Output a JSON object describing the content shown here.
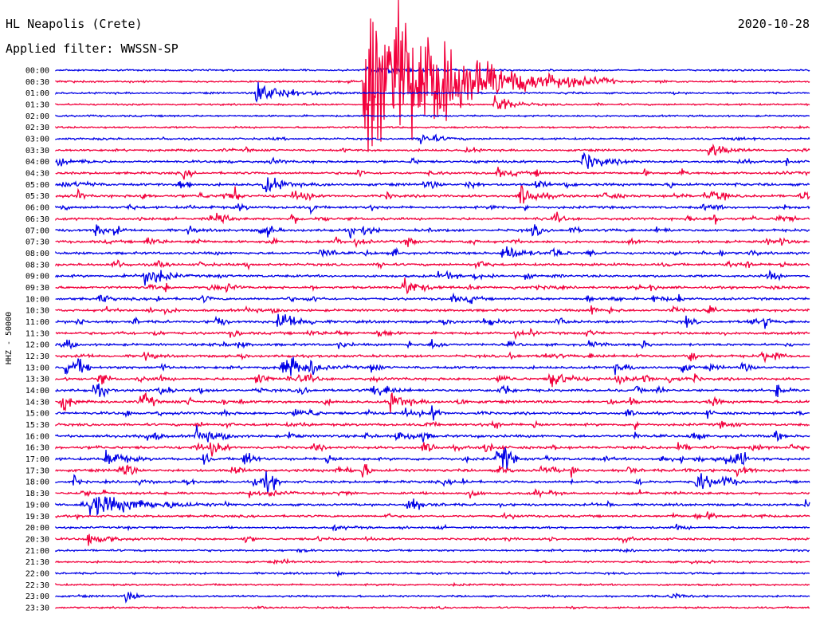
{
  "header": {
    "station": "HL Neapolis (Crete)",
    "filter": "Applied filter: WWSSN-SP",
    "date": "2020-10-28"
  },
  "chart_data": {
    "type": "line",
    "title": "HL Neapolis (Crete)",
    "subtitle": "Applied filter: WWSSN-SP",
    "ylabel": "HHZ - 50000",
    "date": "2020-10-28",
    "rows": [
      "00:00",
      "00:30",
      "01:00",
      "01:30",
      "02:00",
      "02:30",
      "03:00",
      "03:30",
      "04:00",
      "04:30",
      "05:00",
      "05:30",
      "06:00",
      "06:30",
      "07:00",
      "07:30",
      "08:00",
      "08:30",
      "09:00",
      "09:30",
      "10:00",
      "10:30",
      "11:00",
      "11:30",
      "12:00",
      "12:30",
      "13:00",
      "13:30",
      "14:00",
      "14:30",
      "15:00",
      "15:30",
      "16:00",
      "16:30",
      "17:00",
      "17:30",
      "18:00",
      "18:30",
      "19:00",
      "19:30",
      "20:00",
      "20:30",
      "21:00",
      "21:30",
      "22:00",
      "22:30",
      "23:00",
      "23:30"
    ],
    "colors": [
      "#0000e6",
      "#f2003c"
    ],
    "activity": [
      0.08,
      0.12,
      0.1,
      0.12,
      0.1,
      0.1,
      0.25,
      0.3,
      0.45,
      0.5,
      0.6,
      0.65,
      0.6,
      0.6,
      0.65,
      0.6,
      0.55,
      0.55,
      0.55,
      0.55,
      0.55,
      0.55,
      0.6,
      0.6,
      0.55,
      0.6,
      0.65,
      0.65,
      0.65,
      0.65,
      0.65,
      0.6,
      0.65,
      0.7,
      0.75,
      0.7,
      0.6,
      0.5,
      0.45,
      0.4,
      0.3,
      0.35,
      0.2,
      0.2,
      0.2,
      0.15,
      0.15,
      0.12
    ],
    "events": [
      {
        "row": 0,
        "minute": 12.3,
        "amp": 6,
        "dur": 1.5
      },
      {
        "row": 1,
        "minute": 12.3,
        "amp": 150,
        "dur": 2.5
      },
      {
        "row": 2,
        "minute": 8,
        "amp": 16,
        "dur": 1
      },
      {
        "row": 3,
        "minute": 17.5,
        "amp": 14,
        "dur": 0.5
      },
      {
        "row": 6,
        "minute": 14.5,
        "amp": 10,
        "dur": 0.5
      },
      {
        "row": 7,
        "minute": 26,
        "amp": 12,
        "dur": 0.5
      },
      {
        "row": 8,
        "minute": 21,
        "amp": 14,
        "dur": 0.6
      },
      {
        "row": 10,
        "minute": 8.3,
        "amp": 14,
        "dur": 0.5
      },
      {
        "row": 11,
        "minute": 18.5,
        "amp": 14,
        "dur": 0.5
      },
      {
        "row": 16,
        "minute": 17.8,
        "amp": 14,
        "dur": 0.5
      },
      {
        "row": 18,
        "minute": 3.5,
        "amp": 14,
        "dur": 0.5
      },
      {
        "row": 19,
        "minute": 13.8,
        "amp": 14,
        "dur": 0.5
      },
      {
        "row": 22,
        "minute": 9,
        "amp": 12,
        "dur": 0.5
      },
      {
        "row": 26,
        "minute": 9,
        "amp": 12,
        "dur": 0.8
      },
      {
        "row": 27,
        "minute": 19.7,
        "amp": 14,
        "dur": 0.5
      },
      {
        "row": 29,
        "minute": 13.3,
        "amp": 12,
        "dur": 0.5
      },
      {
        "row": 32,
        "minute": 5.6,
        "amp": 12,
        "dur": 0.5
      },
      {
        "row": 34,
        "minute": 2,
        "amp": 14,
        "dur": 0.5
      },
      {
        "row": 36,
        "minute": 25.5,
        "amp": 14,
        "dur": 0.5
      },
      {
        "row": 38,
        "minute": 1.4,
        "amp": 14,
        "dur": 1.5
      },
      {
        "row": 38,
        "minute": 14,
        "amp": 10,
        "dur": 0.5
      },
      {
        "row": 41,
        "minute": 1.3,
        "amp": 8,
        "dur": 0.5
      },
      {
        "row": 46,
        "minute": 2.8,
        "amp": 6,
        "dur": 0.4
      },
      {
        "row": 46,
        "minute": 24.5,
        "amp": 6,
        "dur": 0.4
      }
    ]
  }
}
